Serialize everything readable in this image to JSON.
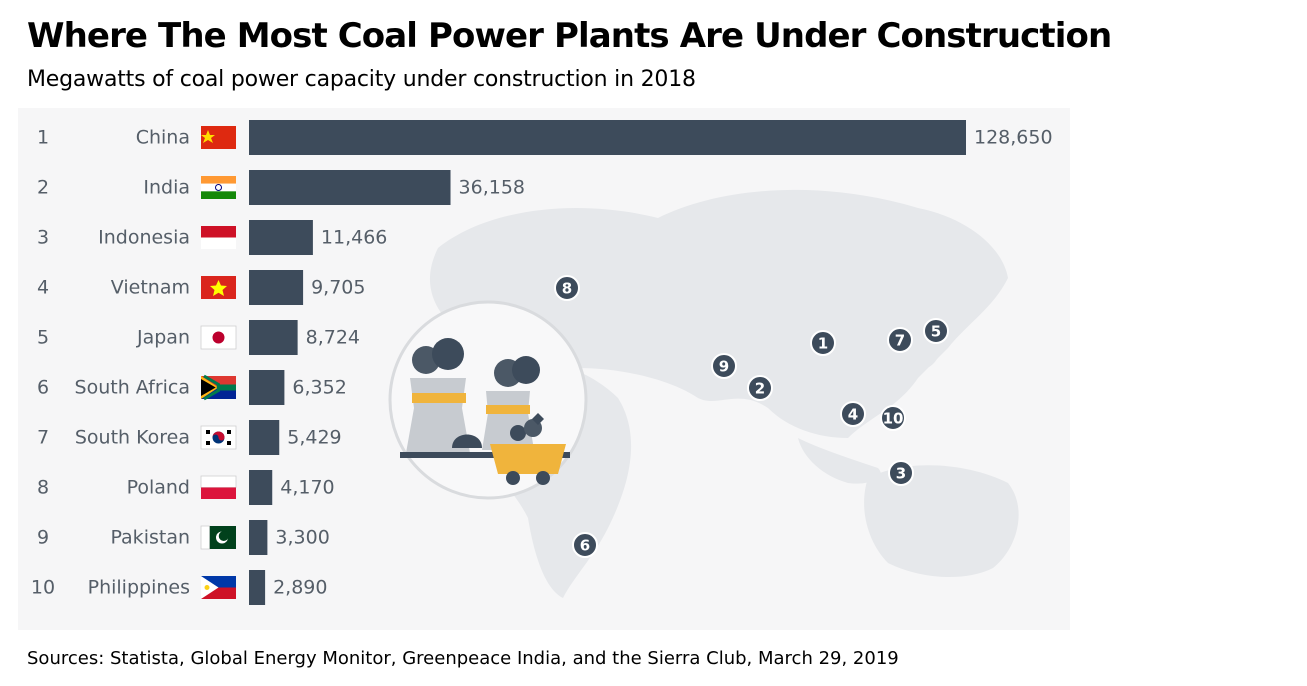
{
  "title": "Where The Most Coal Power Plants Are Under Construction",
  "subtitle": "Megawatts of coal power capacity under construction in 2018",
  "source": "Sources: Statista, Global Energy Monitor, Greenpeace India, and the Sierra Club, March 29, 2019",
  "colors": {
    "bar": "#3d4b5b",
    "label": "#555e68",
    "map": "#e6e8eb",
    "background": "#f6f6f7"
  },
  "chart_data": {
    "type": "bar",
    "orientation": "horizontal",
    "title": "Where The Most Coal Power Plants Are Under Construction",
    "subtitle": "Megawatts of coal power capacity under construction in 2018",
    "xlabel": "",
    "ylabel": "",
    "xlim": [
      0,
      128650
    ],
    "grid": false,
    "legend": "none",
    "ranks": [
      "1",
      "2",
      "3",
      "4",
      "5",
      "6",
      "7",
      "8",
      "9",
      "10"
    ],
    "categories": [
      "China",
      "India",
      "Indonesia",
      "Vietnam",
      "Japan",
      "South Africa",
      "South Korea",
      "Poland",
      "Pakistan",
      "Philippines"
    ],
    "values": [
      128650,
      36158,
      11466,
      9705,
      8724,
      6352,
      5429,
      4170,
      3300,
      2890
    ],
    "value_labels": [
      "128,650",
      "36,158",
      "11,466",
      "9,705",
      "8,724",
      "6,352",
      "5,429",
      "4,170",
      "3,300",
      "2,890"
    ],
    "flag_icons": [
      "china-flag-icon",
      "india-flag-icon",
      "indonesia-flag-icon",
      "vietnam-flag-icon",
      "japan-flag-icon",
      "south-africa-flag-icon",
      "south-korea-flag-icon",
      "poland-flag-icon",
      "pakistan-flag-icon",
      "philippines-flag-icon"
    ],
    "map_markers": [
      "1",
      "2",
      "3",
      "4",
      "5",
      "6",
      "7",
      "8",
      "9",
      "10"
    ]
  },
  "illustration": {
    "icon": "coal-power-plant-icon"
  }
}
